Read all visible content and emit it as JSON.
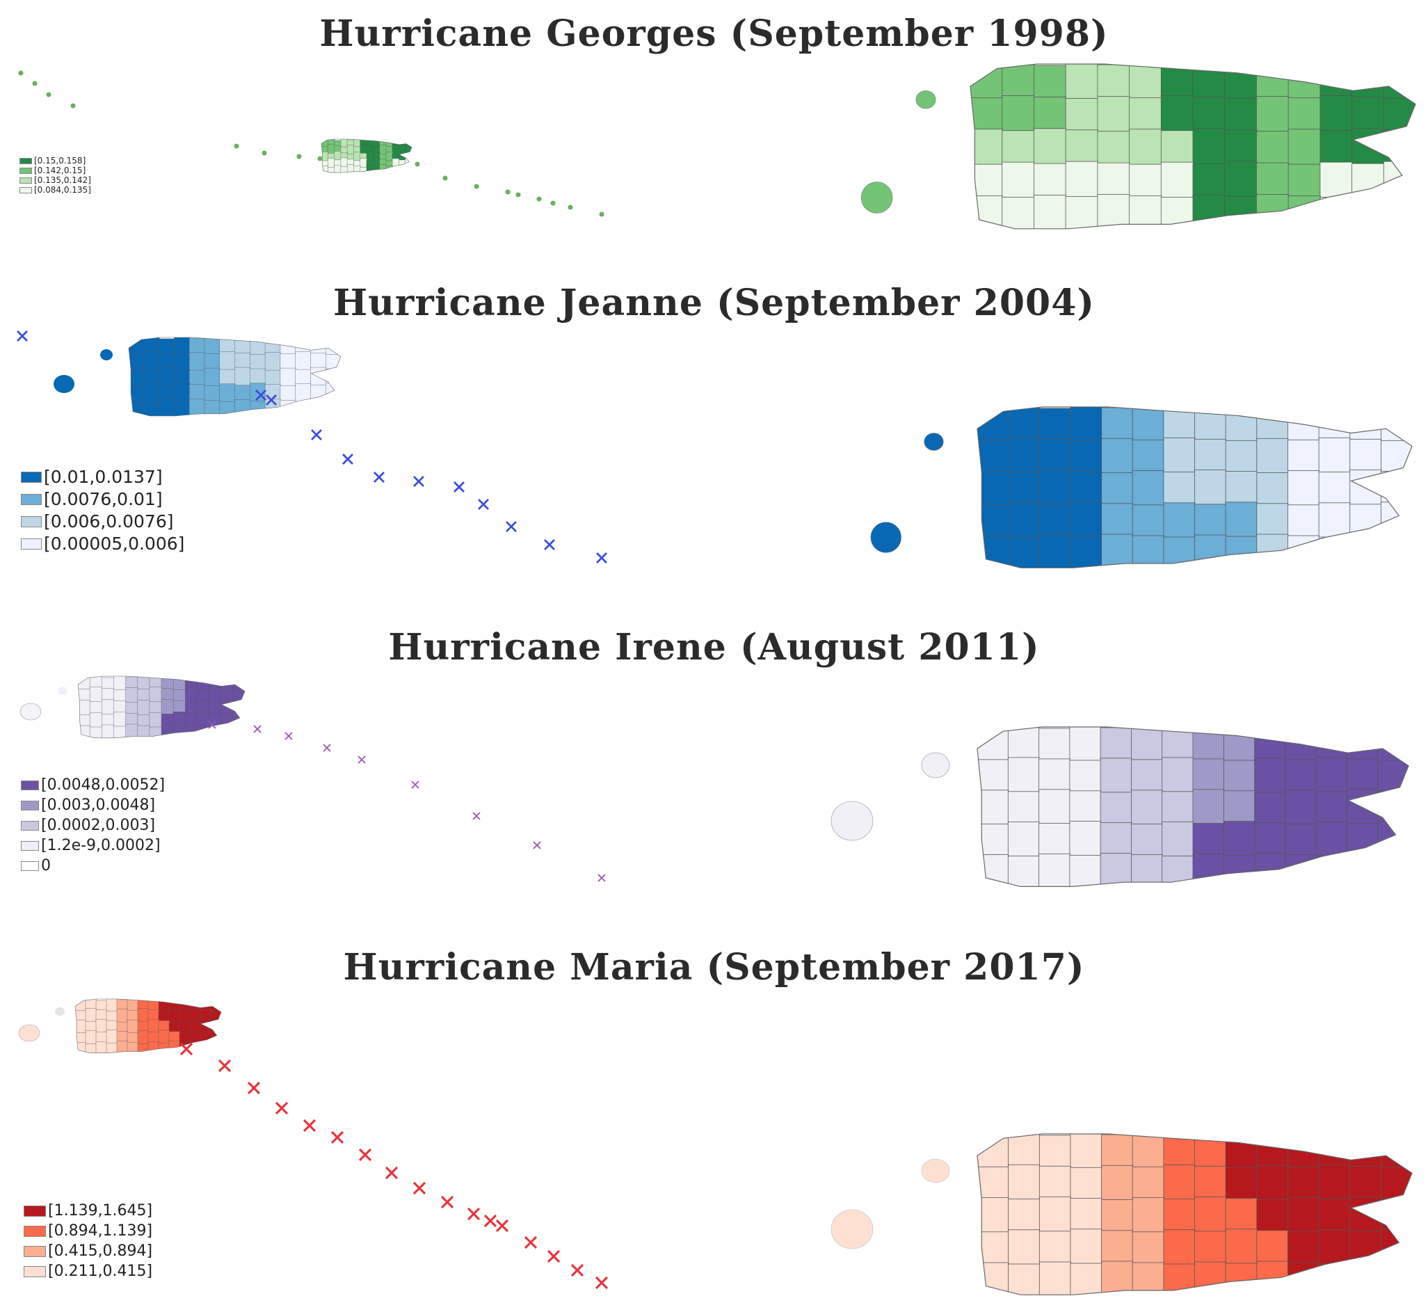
{
  "panels": [
    {
      "title": "Hurricane Georges (September 1998)",
      "color_scale": [
        "#edf8ea",
        "#bae4b3",
        "#74c476",
        "#238b45"
      ],
      "track_marker": "dot",
      "track_color": "#6aae5f",
      "legend": [
        {
          "label": "[0.15,0.158]",
          "color": "#238b45"
        },
        {
          "label": "[0.142,0.15]",
          "color": "#74c476"
        },
        {
          "label": "[0.135,0.142]",
          "color": "#bae4b3"
        },
        {
          "label": "[0.084,0.135]",
          "color": "#edf8ea"
        }
      ]
    },
    {
      "title": "Hurricane Jeanne (September 2004)",
      "color_scale": [
        "#eff3ff",
        "#bdd7e7",
        "#6baed6",
        "#0868b3"
      ],
      "track_marker": "x",
      "track_color": "#3a4ed8",
      "legend": [
        {
          "label": "[0.01,0.0137]",
          "color": "#0868b3"
        },
        {
          "label": "[0.0076,0.01]",
          "color": "#6baed6"
        },
        {
          "label": "[0.006,0.0076]",
          "color": "#bdd7e7"
        },
        {
          "label": "[0.00005,0.006]",
          "color": "#eff3ff"
        }
      ]
    },
    {
      "title": "Hurricane Irene (August 2011)",
      "color_scale": [
        "#f2f0f7",
        "#cbc9e2",
        "#9e9ac8",
        "#6a51a3"
      ],
      "track_marker": "x",
      "track_color": "#9a58b8",
      "legend": [
        {
          "label": "[0.0048,0.0052]",
          "color": "#6a51a3"
        },
        {
          "label": "[0.003,0.0048]",
          "color": "#9e9ac8"
        },
        {
          "label": "[0.0002,0.003]",
          "color": "#cbc9e2"
        },
        {
          "label": "[1.2e-9,0.0002]",
          "color": "#f2f0f7"
        },
        {
          "label": "0",
          "color": "#ffffff"
        }
      ]
    },
    {
      "title": "Hurricane Maria (September 2017)",
      "color_scale": [
        "#fee0d2",
        "#fcae91",
        "#fb6a4a",
        "#b5191d"
      ],
      "track_marker": "x",
      "track_color": "#e8333a",
      "legend": [
        {
          "label": "[1.139,1.645]",
          "color": "#b5191d"
        },
        {
          "label": "[0.894,1.139]",
          "color": "#fb6a4a"
        },
        {
          "label": "[0.415,0.894]",
          "color": "#fcae91"
        },
        {
          "label": "[0.211,0.415]",
          "color": "#fee0d2"
        }
      ]
    }
  ]
}
